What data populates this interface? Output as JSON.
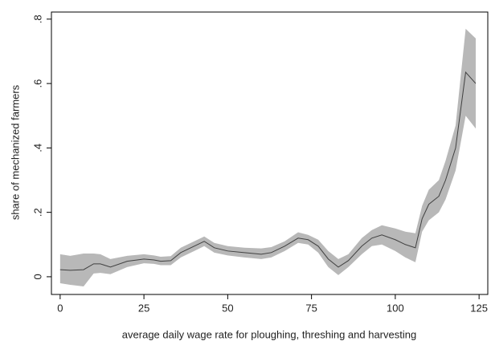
{
  "chart_data": {
    "type": "line",
    "xlabel": "average daily wage rate for ploughing, threshing and harvesting",
    "ylabel": "share of mechanized farmers",
    "x": [
      0,
      3,
      7,
      10,
      12,
      15,
      20,
      25,
      28,
      30,
      33,
      36,
      40,
      43,
      46,
      50,
      55,
      60,
      63,
      67,
      71,
      74,
      77,
      80,
      83,
      86,
      90,
      93,
      96,
      100,
      103,
      106,
      108,
      110,
      113,
      115,
      118,
      121,
      124
    ],
    "values": [
      0.022,
      0.02,
      0.022,
      0.04,
      0.04,
      0.03,
      0.048,
      0.055,
      0.052,
      0.048,
      0.05,
      0.075,
      0.095,
      0.11,
      0.09,
      0.08,
      0.075,
      0.07,
      0.075,
      0.095,
      0.12,
      0.115,
      0.095,
      0.055,
      0.03,
      0.05,
      0.095,
      0.12,
      0.13,
      0.115,
      0.1,
      0.09,
      0.18,
      0.225,
      0.25,
      0.3,
      0.4,
      0.635,
      0.6
    ],
    "lower": [
      -0.02,
      -0.025,
      -0.03,
      0.01,
      0.012,
      0.008,
      0.03,
      0.042,
      0.04,
      0.036,
      0.036,
      0.06,
      0.08,
      0.095,
      0.075,
      0.066,
      0.06,
      0.055,
      0.06,
      0.08,
      0.105,
      0.1,
      0.075,
      0.03,
      0.005,
      0.03,
      0.07,
      0.095,
      0.1,
      0.08,
      0.06,
      0.045,
      0.14,
      0.175,
      0.2,
      0.24,
      0.33,
      0.5,
      0.46
    ],
    "upper": [
      0.07,
      0.065,
      0.072,
      0.072,
      0.07,
      0.055,
      0.065,
      0.07,
      0.066,
      0.062,
      0.064,
      0.09,
      0.11,
      0.125,
      0.105,
      0.095,
      0.09,
      0.088,
      0.092,
      0.11,
      0.138,
      0.13,
      0.115,
      0.08,
      0.055,
      0.07,
      0.12,
      0.145,
      0.16,
      0.15,
      0.14,
      0.135,
      0.22,
      0.27,
      0.3,
      0.36,
      0.47,
      0.77,
      0.74
    ],
    "line_color": "#404040",
    "band_color": "#b8b8b8",
    "xlim": [
      -2.6,
      127.6
    ],
    "ylim": [
      -0.055,
      0.822
    ],
    "xticks": [
      0,
      25,
      50,
      75,
      100,
      125
    ],
    "yticks": [
      0,
      {
        "value": 0.2,
        "label": ".2"
      },
      {
        "value": 0.4,
        "label": ".4"
      },
      {
        "value": 0.6,
        "label": ".6"
      },
      {
        "value": 0.8,
        "label": ".8"
      }
    ]
  }
}
